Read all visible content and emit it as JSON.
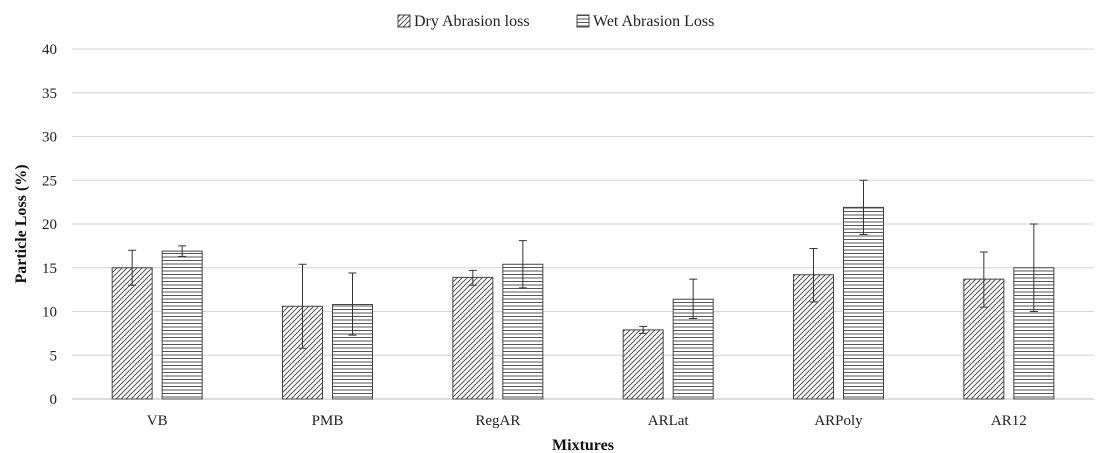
{
  "chart_data": {
    "type": "bar",
    "xlabel": "Mixtures",
    "ylabel": "Particle Loss (%)",
    "ylim": [
      0,
      40
    ],
    "yticks": [
      0,
      5,
      10,
      15,
      20,
      25,
      30,
      35,
      40
    ],
    "grid": true,
    "legend_position": "top-center",
    "categories": [
      "VB",
      "PMB",
      "RegAR",
      "ARLat",
      "ARPoly",
      "AR12"
    ],
    "series": [
      {
        "name": "Dry Abrasion loss",
        "pattern": "diagonal-hatch",
        "values": [
          15.0,
          10.6,
          13.9,
          7.9,
          14.2,
          13.7
        ],
        "error_low": [
          13.0,
          5.8,
          13.0,
          7.5,
          11.1,
          10.5
        ],
        "error_high": [
          17.0,
          15.4,
          14.7,
          8.3,
          17.2,
          16.8
        ]
      },
      {
        "name": "Wet Abrasion Loss",
        "pattern": "horizontal-lines",
        "values": [
          16.9,
          10.8,
          15.4,
          11.4,
          21.9,
          15.0
        ],
        "error_low": [
          16.3,
          7.3,
          12.7,
          9.2,
          18.8,
          10.0
        ],
        "error_high": [
          17.5,
          14.4,
          18.1,
          13.7,
          25.0,
          20.0
        ]
      }
    ]
  }
}
